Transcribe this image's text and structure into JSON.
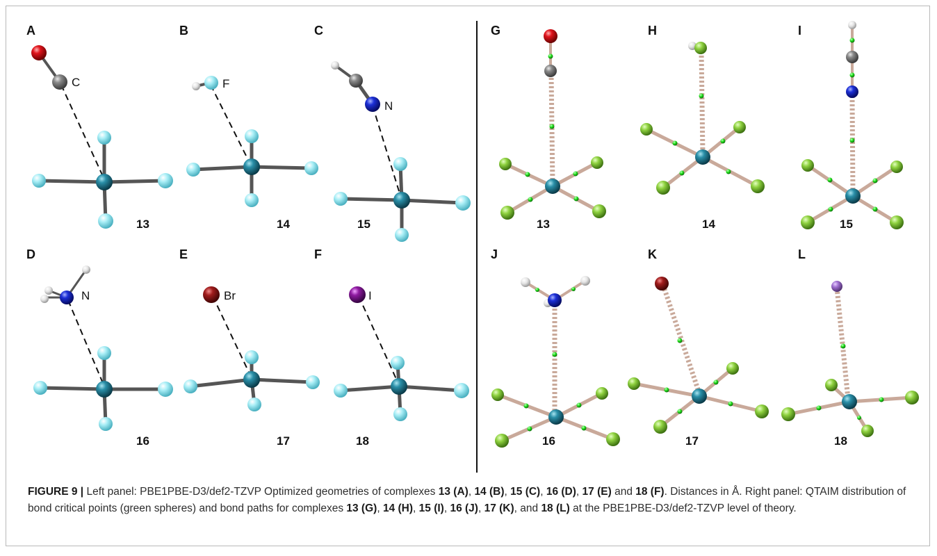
{
  "figure": {
    "panel_letters": [
      "A",
      "B",
      "C",
      "D",
      "E",
      "F",
      "G",
      "H",
      "I",
      "J",
      "K",
      "L"
    ],
    "left_panels": [
      {
        "letter": "A",
        "compound": "13",
        "donor_atom": "C",
        "donor": "co"
      },
      {
        "letter": "B",
        "compound": "14",
        "donor_atom": "F",
        "donor": "hf"
      },
      {
        "letter": "C",
        "compound": "15",
        "donor_atom": "N",
        "donor": "hcn"
      },
      {
        "letter": "D",
        "compound": "16",
        "donor_atom": "N",
        "donor": "nh3"
      },
      {
        "letter": "E",
        "compound": "17",
        "donor_atom": "Br",
        "donor": "br"
      },
      {
        "letter": "F",
        "compound": "18",
        "donor_atom": "I",
        "donor": "i"
      }
    ],
    "right_panels": [
      {
        "letter": "G",
        "compound": "13",
        "donor": "co"
      },
      {
        "letter": "H",
        "compound": "14",
        "donor": "hf"
      },
      {
        "letter": "I",
        "compound": "15",
        "donor": "hcn"
      },
      {
        "letter": "J",
        "compound": "16",
        "donor": "nh3"
      },
      {
        "letter": "K",
        "compound": "17",
        "donor": "br"
      },
      {
        "letter": "L",
        "compound": "18",
        "donor": "i"
      }
    ],
    "atom_colors": {
      "oxygen": "#e0141c",
      "carbon": "#8a8a8a",
      "hydrogen": "#eeeeee",
      "nitrogen": "#1c2fd6",
      "bromine": "#a01c1c",
      "iodine": "#8e1aa0",
      "central": "#2a8fa8",
      "fluorine_light": "#8fe3ee",
      "fluorine_green": "#8ed13f",
      "bcp": "#22e01c",
      "bond_path": "#c9a99a"
    }
  },
  "caption": {
    "figure_label": "FIGURE 9 |",
    "t1": " Left panel: PBE1PBE-D3/def2-TZVP Optimized geometries of complexes ",
    "b1": "13 (A)",
    "s1": ", ",
    "b2": "14 (B)",
    "s2": ", ",
    "b3": "15 (C)",
    "s3": ", ",
    "b4": "16 (D)",
    "s4": ", ",
    "b5": "17 (E)",
    "s5": " and ",
    "b6": "18 (F)",
    "t2": ". Distances in Å. Right panel: QTAIM distribution of bond critical points (green spheres) and bond paths for complexes ",
    "b7": "13 (G)",
    "s7": ", ",
    "b8": "14 (H)",
    "s8": ", ",
    "b9": "15 (I)",
    "s9": ", ",
    "b10": "16 (J)",
    "s10": ", ",
    "b11": "17 (K)",
    "s11": ", and ",
    "b12": "18 (L)",
    "t3": " at the PBE1PBE-D3/def2-TZVP level of theory."
  }
}
